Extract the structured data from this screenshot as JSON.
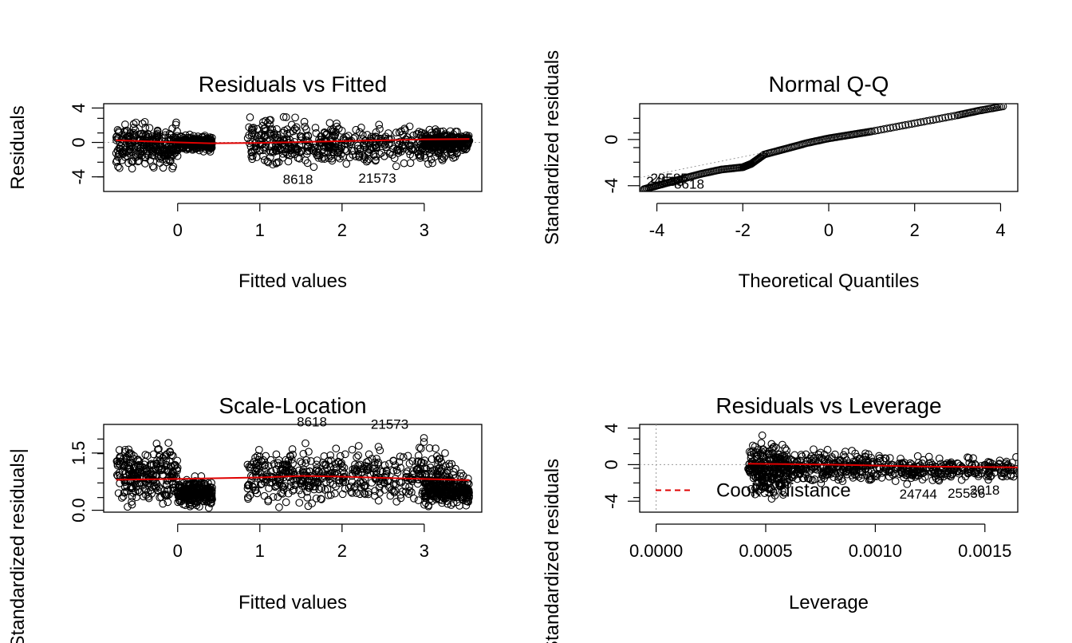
{
  "chart_data": [
    {
      "type": "scatter",
      "title": "Residuals vs Fitted",
      "xlabel": "Fitted values",
      "ylabel": "Residuals",
      "xlim": [
        -0.9,
        3.7
      ],
      "ylim": [
        -5.7,
        4.5
      ],
      "xticks": [
        0,
        1,
        2,
        3
      ],
      "yticks": [
        -4,
        0,
        4
      ],
      "ref_line_y": 0,
      "clusters": [
        {
          "x": [
            -0.75,
            0.0
          ],
          "y": [
            -3.7,
            3.0
          ]
        },
        {
          "x": [
            0.0,
            0.42
          ],
          "y": [
            -1.2,
            1.0
          ]
        },
        {
          "x": [
            0.85,
            1.95
          ],
          "y": [
            -3.5,
            3.4
          ]
        },
        {
          "x": [
            1.95,
            3.4
          ],
          "y": [
            -3.3,
            2.7
          ]
        },
        {
          "x": [
            3.0,
            3.55
          ],
          "y": [
            -1.2,
            1.3
          ]
        }
      ],
      "smooth_line": {
        "x": [
          -0.75,
          0.0,
          0.4,
          1.0,
          1.5,
          2.0,
          2.5,
          3.0,
          3.55
        ],
        "y": [
          0.25,
          0.0,
          -0.1,
          -0.05,
          0.05,
          0.15,
          0.25,
          0.35,
          0.4
        ]
      },
      "labels": [
        {
          "text": "8618",
          "x": 1.28,
          "y": -4.8
        },
        {
          "text": "21573",
          "x": 2.2,
          "y": -4.7
        }
      ],
      "annotations": [
        "2157"
      ]
    },
    {
      "type": "scatter",
      "title": "Normal Q-Q",
      "xlabel": "Theoretical Quantiles",
      "ylabel": "Standardized residuals",
      "xlim": [
        -4.4,
        4.4
      ],
      "ylim": [
        -4.5,
        3.1
      ],
      "xticks": [
        -4,
        -2,
        0,
        2,
        4
      ],
      "yticks": [
        -4,
        0
      ],
      "qq_curve": {
        "x": [
          -4.3,
          -3.9,
          -3.5,
          -3.0,
          -2.5,
          -2.0,
          -1.8,
          -1.5,
          -1.0,
          -0.5,
          0.0,
          0.5,
          1.0,
          2.0,
          3.0,
          3.5,
          4.1
        ]
      },
      "qq_curve_y": [
        -4.3,
        -3.9,
        -3.5,
        -3.0,
        -2.6,
        -2.4,
        -2.1,
        -1.3,
        -0.8,
        -0.3,
        0.1,
        0.4,
        0.7,
        1.4,
        2.1,
        2.5,
        2.9
      ],
      "labels": [
        {
          "text": "29585",
          "x": -4.15,
          "y": -3.75
        },
        {
          "text": "24538",
          "x": -4.25,
          "y": -4.0
        },
        {
          "text": "8618",
          "x": -3.6,
          "y": -4.25
        }
      ]
    },
    {
      "type": "scatter",
      "title": "Scale-Location",
      "xlabel": "Fitted values",
      "ylabel": "√|Standardized residuals|",
      "xlim": [
        -0.9,
        3.7
      ],
      "ylim": [
        -0.05,
        2.25
      ],
      "xticks": [
        0,
        1,
        2,
        3
      ],
      "yticks": [
        0.0,
        1.5
      ],
      "clusters": [
        {
          "x": [
            -0.75,
            0.0
          ],
          "y": [
            0.0,
            1.9
          ]
        },
        {
          "x": [
            0.0,
            0.42
          ],
          "y": [
            0.0,
            0.9
          ]
        },
        {
          "x": [
            0.85,
            1.95
          ],
          "y": [
            0.0,
            1.8
          ]
        },
        {
          "x": [
            1.95,
            3.4
          ],
          "y": [
            0.0,
            1.9
          ]
        },
        {
          "x": [
            3.0,
            3.55
          ],
          "y": [
            0.0,
            1.0
          ]
        }
      ],
      "smooth_line": {
        "x": [
          -0.75,
          0.0,
          1.0,
          1.5,
          2.0,
          2.5,
          3.0,
          3.55
        ],
        "y": [
          0.8,
          0.82,
          0.86,
          0.9,
          0.88,
          0.85,
          0.82,
          0.79
        ]
      },
      "labels": [
        {
          "text": "8618",
          "x": 1.45,
          "y": 2.2
        },
        {
          "text": "21573",
          "x": 2.35,
          "y": 2.13
        }
      ],
      "annotations": [
        "2157"
      ]
    },
    {
      "type": "scatter",
      "title": "Residuals vs Leverage",
      "xlabel": "Leverage",
      "ylabel": "Standardized residuals",
      "xlim": [
        -7.5e-05,
        0.00165
      ],
      "ylim": [
        -5.2,
        4.4
      ],
      "xticks": [
        0.0,
        0.0005,
        0.001,
        0.0015
      ],
      "xtick_labels": [
        "0.0000",
        "0.0005",
        "0.0010",
        "0.0015"
      ],
      "yticks": [
        -4,
        0,
        4
      ],
      "clusters": [
        {
          "x": [
            0.00042,
            0.0006
          ],
          "y": [
            -4.0,
            3.2
          ]
        },
        {
          "x": [
            0.0006,
            0.00105
          ],
          "y": [
            -2.5,
            2.0
          ]
        },
        {
          "x": [
            0.00105,
            0.00165
          ],
          "y": [
            -2.2,
            1.2
          ]
        }
      ],
      "smooth_line": {
        "x": [
          0.00042,
          0.0008,
          0.0012,
          0.00165
        ],
        "y": [
          0.1,
          0.0,
          -0.2,
          -0.3
        ]
      },
      "legend": {
        "entries": [
          "Cook's distance"
        ],
        "position": "bottom-left"
      },
      "labels": [
        {
          "text": "24744",
          "x": 0.00111,
          "y": -3.7
        },
        {
          "text": "25536",
          "x": 0.00133,
          "y": -3.65
        },
        {
          "text": "2018",
          "x": 0.00143,
          "y": -3.3
        }
      ]
    }
  ]
}
